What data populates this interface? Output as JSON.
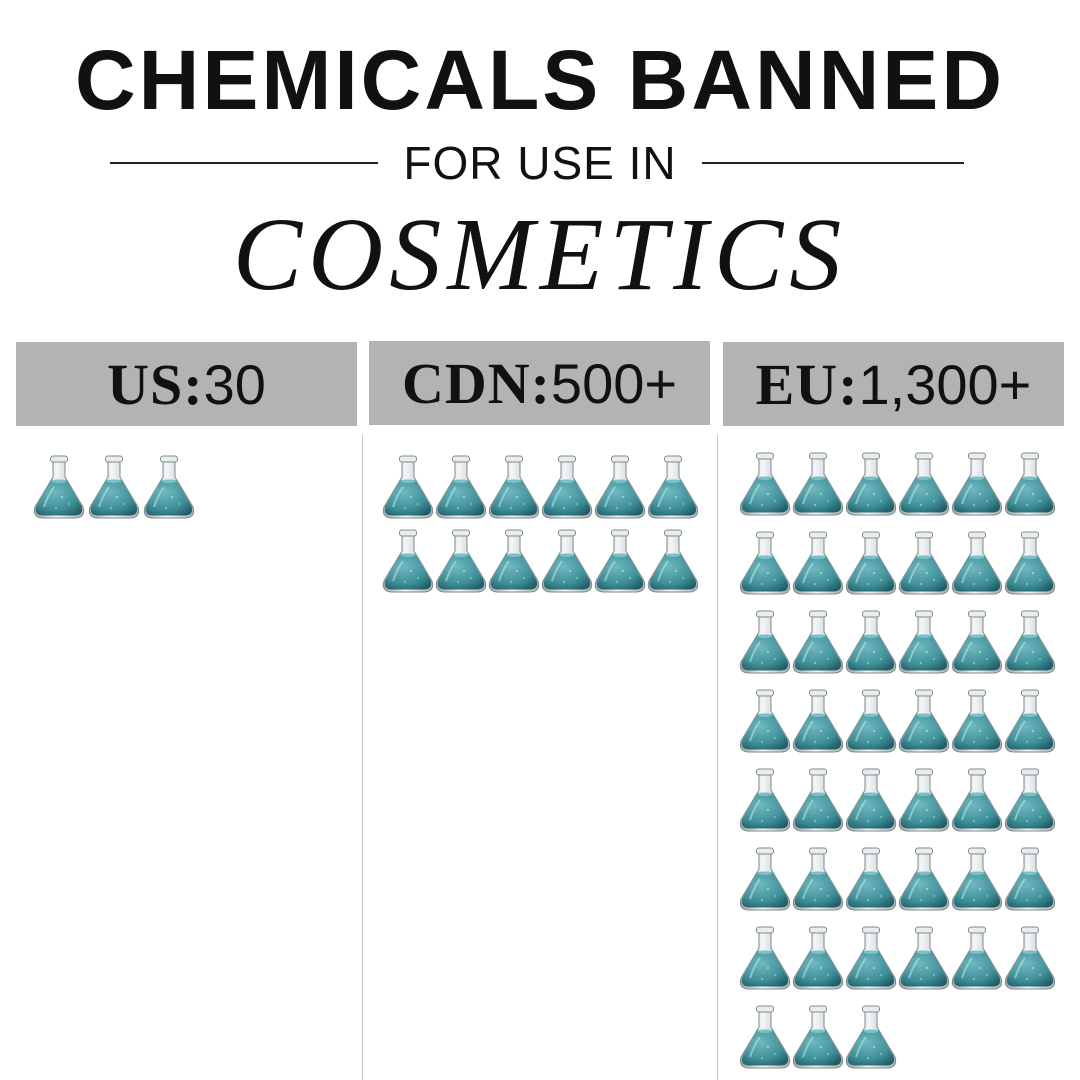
{
  "header": {
    "title": "CHEMICALS BANNED",
    "subtitle": "FOR USE IN",
    "headline": "COSMETICS"
  },
  "chart_data": {
    "type": "pictograph",
    "icon": "flask-icon",
    "icon_color": "#4f9ea6",
    "header_color": "#b3b3b3",
    "categories": [
      {
        "code": "US:",
        "label": " 30",
        "icons": 3
      },
      {
        "code": "CDN:",
        "label": " 500+",
        "icons": 12
      },
      {
        "code": "EU:",
        "label": " 1,300+",
        "icons": 45
      }
    ]
  }
}
